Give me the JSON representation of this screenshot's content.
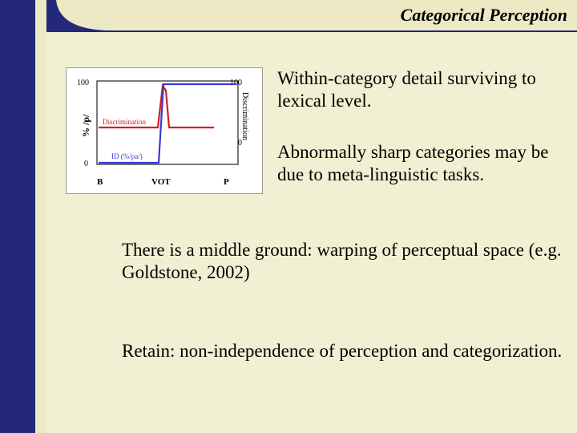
{
  "header": {
    "title": "Categorical Perception"
  },
  "figure": {
    "left_axis_label": "% /p/",
    "right_axis_label": "Discrimination",
    "left_ticks": [
      "100",
      "0"
    ],
    "right_ticks": [
      "100",
      "0"
    ],
    "x_ticks": [
      "B",
      "VOT",
      "P"
    ],
    "discrimination_label": "Discrimination",
    "id_label": "ID (%/pa/)",
    "colors": {
      "discrimination": "#d21f1f",
      "id": "#3a3ad6"
    }
  },
  "body": {
    "point1": "Within-category detail surviving to lexical level.",
    "point2": "Abnormally sharp categories may be due to meta-linguistic tasks.",
    "point3": "There is a middle ground: warping of perceptual space (e.g. Goldstone, 2002)",
    "point4": "Retain: non-independence of perception and categorization."
  }
}
